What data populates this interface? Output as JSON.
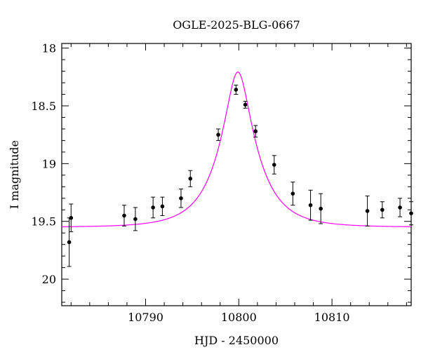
{
  "chart_data": {
    "type": "scatter",
    "title": "OGLE-2025-BLG-0667",
    "xlabel": "HJD - 2450000",
    "ylabel": "I magnitude",
    "xlim": [
      10781.0,
      10818.5
    ],
    "ylim": [
      20.23,
      17.96
    ],
    "y_inverted": true,
    "x_ticks": [
      10790,
      10800,
      10810
    ],
    "y_ticks": [
      18,
      18.5,
      19,
      19.5,
      20
    ],
    "x_tick_labels": [
      "10790",
      "10800",
      "10810"
    ],
    "y_tick_labels": [
      "18",
      "18.5",
      "19",
      "19.5",
      "20"
    ],
    "x_minor_step": 2,
    "y_minor_step": 0.1,
    "grid": false,
    "model_color": "#ff00ff",
    "point_color": "#000000",
    "series": [
      {
        "type": "scatter",
        "x": [
          10781.8,
          10782.0,
          10787.7,
          10788.9,
          10790.8,
          10791.8,
          10793.8,
          10794.8,
          10797.8,
          10799.7,
          10800.7,
          10801.8,
          10803.8,
          10805.8,
          10807.7,
          10808.8,
          10813.8,
          10815.4,
          10817.3,
          10818.5
        ],
        "y": [
          19.68,
          19.47,
          19.45,
          19.48,
          19.38,
          19.37,
          19.3,
          19.13,
          18.75,
          18.36,
          18.49,
          18.72,
          19.01,
          19.26,
          19.36,
          19.39,
          19.41,
          19.4,
          19.38,
          19.43
        ],
        "err": [
          0.21,
          0.12,
          0.09,
          0.1,
          0.09,
          0.08,
          0.08,
          0.07,
          0.05,
          0.04,
          0.03,
          0.05,
          0.08,
          0.1,
          0.13,
          0.13,
          0.13,
          0.07,
          0.08,
          0.1
        ]
      },
      {
        "type": "line",
        "model": "pspl",
        "t0": 10799.9,
        "u0": 0.3,
        "tE": 4.0,
        "baseline": 19.55,
        "x_range": [
          10781.0,
          10818.5
        ]
      }
    ]
  }
}
